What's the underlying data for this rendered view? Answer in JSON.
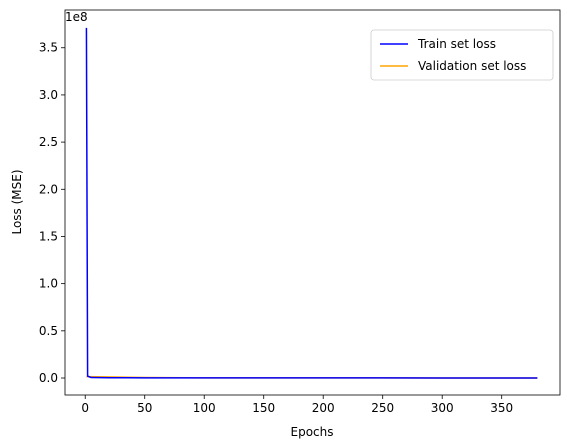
{
  "chart_data": {
    "type": "line",
    "title": "",
    "xlabel": "Epochs",
    "ylabel": "Loss (MSE)",
    "y_offset_text": "1e8",
    "xlim": [
      -17,
      399
    ],
    "ylim": [
      -0.18,
      3.9
    ],
    "x_ticks": [
      0,
      50,
      100,
      150,
      200,
      250,
      300,
      350
    ],
    "y_ticks": [
      0.0,
      0.5,
      1.0,
      1.5,
      2.0,
      2.5,
      3.0,
      3.5
    ],
    "y_tick_labels": [
      "0.0",
      "0.5",
      "1.0",
      "1.5",
      "2.0",
      "2.5",
      "3.0",
      "3.5"
    ],
    "grid": false,
    "legend_position": "top-right",
    "series": [
      {
        "name": "Train set loss",
        "color": "#0000ff",
        "points": [
          [
            1,
            3.71
          ],
          [
            2,
            0.02
          ],
          [
            5,
            0.005
          ],
          [
            20,
            0.003
          ],
          [
            50,
            0.002
          ],
          [
            100,
            0.001
          ],
          [
            200,
            0.001
          ],
          [
            300,
            0.0008
          ],
          [
            380,
            0.0008
          ]
        ]
      },
      {
        "name": "Validation set loss",
        "color": "#ffa500",
        "points": [
          [
            1,
            0.015
          ],
          [
            10,
            0.013
          ],
          [
            25,
            0.011
          ],
          [
            50,
            0.005
          ],
          [
            100,
            0.002
          ],
          [
            200,
            0.001
          ],
          [
            300,
            0.0008
          ],
          [
            380,
            0.0008
          ]
        ]
      }
    ]
  }
}
